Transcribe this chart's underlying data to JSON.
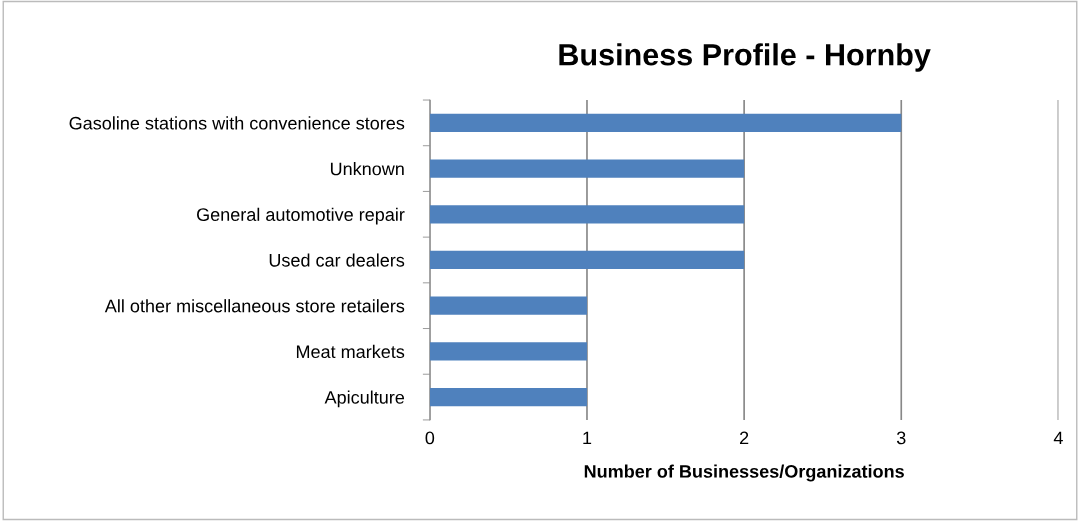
{
  "chart_data": {
    "type": "bar",
    "orientation": "horizontal",
    "title": "Business Profile - Hornby",
    "xlabel": "Number of Businesses/Organizations",
    "categories": [
      "Gasoline stations with convenience stores",
      "Unknown",
      "General automotive repair",
      "Used car dealers",
      "All other miscellaneous store retailers",
      "Meat markets",
      "Apiculture"
    ],
    "values": [
      3,
      2,
      2,
      2,
      1,
      1,
      1
    ],
    "color": "#4f81bd",
    "xlim": [
      0,
      4
    ],
    "xticks": [
      0,
      1,
      2,
      3,
      4
    ],
    "grid": "x",
    "legend": false
  }
}
